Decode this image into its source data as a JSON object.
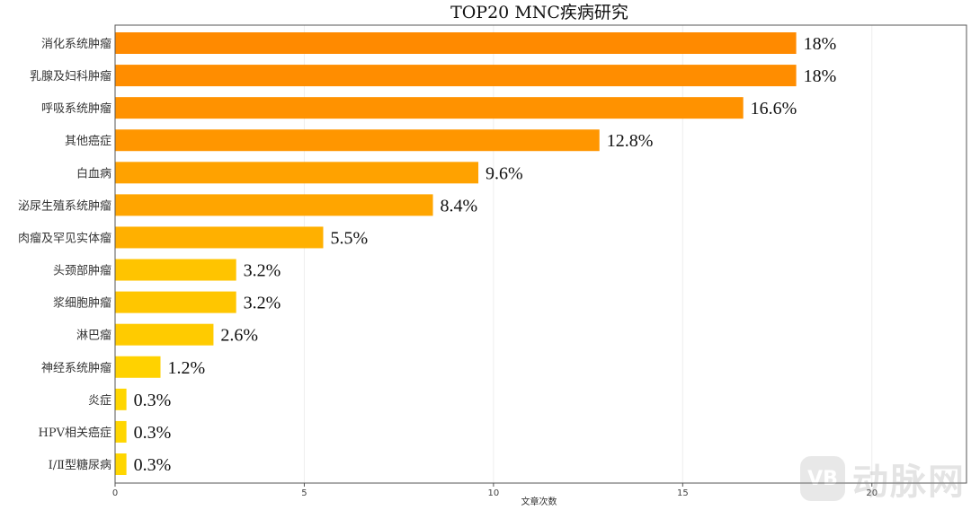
{
  "chart_data": {
    "type": "bar",
    "orientation": "horizontal",
    "title": "TOP20 MNC疾病研究",
    "xlabel": "文章次数",
    "ylabel": "",
    "xlim": [
      0,
      22.5
    ],
    "xticks": [
      0,
      5,
      10,
      15,
      20
    ],
    "grid": "vertical",
    "categories": [
      "消化系统肿瘤",
      "乳腺及妇科肿瘤",
      "呼吸系统肿瘤",
      "其他癌症",
      "白血病",
      "泌尿生殖系统肿瘤",
      "肉瘤及罕见实体瘤",
      "头颈部肿瘤",
      "浆细胞肿瘤",
      "淋巴瘤",
      "神经系统肿瘤",
      "炎症",
      "HPV相关癌症",
      "Ⅰ/Ⅱ型糖尿病"
    ],
    "values": [
      18,
      18,
      16.6,
      12.8,
      9.6,
      8.4,
      5.5,
      3.2,
      3.2,
      2.6,
      1.2,
      0.3,
      0.3,
      0.3
    ],
    "data_labels": [
      "18%",
      "18%",
      "16.6%",
      "12.8%",
      "9.6%",
      "8.4%",
      "5.5%",
      "3.2%",
      "3.2%",
      "2.6%",
      "1.2%",
      "0.3%",
      "0.3%",
      "0.3%"
    ],
    "bar_colors": [
      "#ff8a00",
      "#ff8d00",
      "#ff9200",
      "#ff9600",
      "#ffa200",
      "#ffa500",
      "#ffb000",
      "#ffc400",
      "#ffc600",
      "#ffcb00",
      "#ffd200",
      "#ffd600",
      "#ffd600",
      "#ffd600"
    ]
  },
  "watermark": {
    "logo_text": "VB",
    "brand_text": "动脉网"
  }
}
